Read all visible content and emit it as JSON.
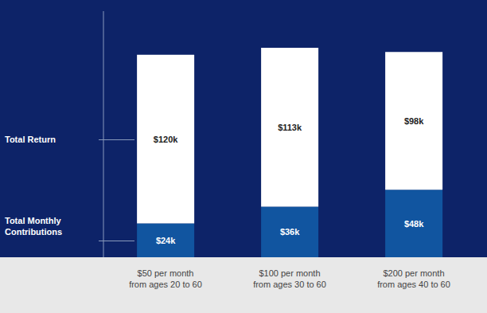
{
  "chart_data": {
    "type": "bar",
    "stacked": true,
    "categories": [
      "$50 per month\nfrom ages 20 to 60",
      "$100 per month\nfrom ages 30 to 60",
      "$200 per month\nfrom ages 40 to 60"
    ],
    "series": [
      {
        "name": "Total Monthly\nContributions",
        "color": "#1155a0",
        "values": [
          24,
          36,
          48
        ],
        "value_labels": [
          "$24k",
          "$36k",
          "$48k"
        ]
      },
      {
        "name": "Total Return",
        "color": "#ffffff",
        "values": [
          120,
          113,
          98
        ],
        "value_labels": [
          "$120k",
          "$113k",
          "$98k"
        ]
      }
    ],
    "ylim": [
      0,
      175
    ],
    "data_labels": true,
    "tick_labels": "x"
  }
}
